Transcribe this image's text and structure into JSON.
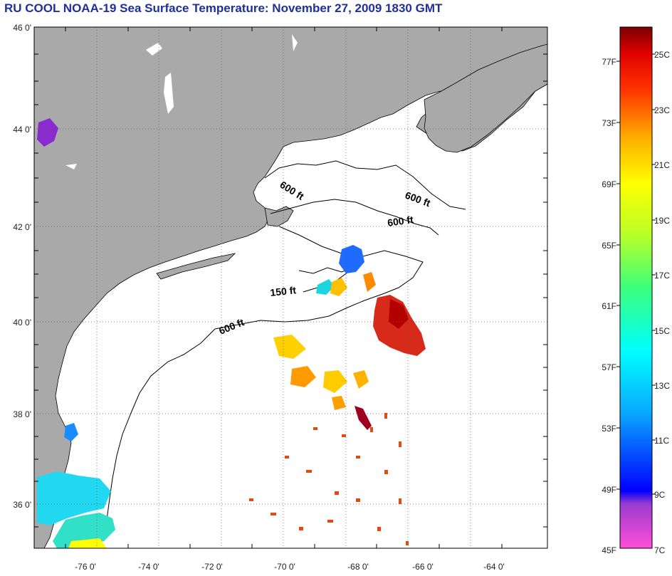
{
  "title": "RU COOL  NOAA-19  Sea Surface Temperature:  November 27, 2009 1830 GMT",
  "map": {
    "lat_labels": [
      "46 0'",
      "44 0'",
      "42 0'",
      "40 0'",
      "38 0'",
      "36 0'"
    ],
    "lon_labels": [
      "-76 0'",
      "-74 0'",
      "-72 0'",
      "-70 0'",
      "-68 0'",
      "-66 0'",
      "-64 0'"
    ],
    "contour_labels": [
      "600 ft",
      "600 ft",
      "600 ft",
      "150 ft",
      "600 ft"
    ],
    "colors": {
      "land": "#a9a9a9",
      "ocean": "#ffffff",
      "title": "#1f2f9e"
    }
  },
  "colorbar": {
    "fahrenheit_labels": [
      "77F",
      "73F",
      "69F",
      "65F",
      "61F",
      "57F",
      "53F",
      "49F",
      "45F"
    ],
    "celsius_labels": [
      "25C",
      "23C",
      "21C",
      "19C",
      "17C",
      "15C",
      "13C",
      "11C",
      "9C",
      "7C"
    ],
    "range_c": [
      7,
      26.5
    ]
  }
}
